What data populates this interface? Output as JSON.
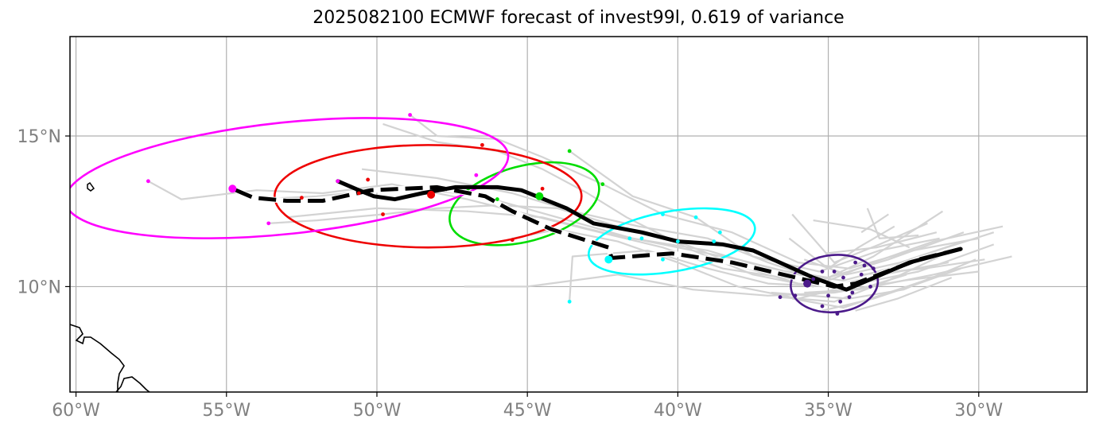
{
  "title": "2025082100 ECMWF forecast of invest99l, 0.619 of variance",
  "axes": {
    "lon_range": [
      -60.2,
      -26.4
    ],
    "lat_range": [
      6.5,
      18.3
    ],
    "x_ticks": [
      {
        "value": -60,
        "label": "60°W"
      },
      {
        "value": -55,
        "label": "55°W"
      },
      {
        "value": -50,
        "label": "50°W"
      },
      {
        "value": -45,
        "label": "45°W"
      },
      {
        "value": -40,
        "label": "40°W"
      },
      {
        "value": -35,
        "label": "35°W"
      },
      {
        "value": -30,
        "label": "30°W"
      }
    ],
    "y_ticks": [
      {
        "value": 10,
        "label": "10°N"
      },
      {
        "value": 15,
        "label": "15°N"
      }
    ],
    "grid_lons": [
      -60,
      -55,
      -50,
      -45,
      -40,
      -35,
      -30
    ],
    "grid_lats": [
      10,
      15
    ]
  },
  "colors": {
    "grid": "#b0b0b0",
    "members": "#d3d3d3",
    "mean": "#000000",
    "coast": "#000000",
    "tick": "#808080"
  },
  "chart_data": {
    "type": "map-track",
    "mean_track": [
      [
        -34.6,
        10.2
      ],
      [
        -34.2,
        10.3
      ],
      [
        -33.5,
        10.6
      ],
      [
        -32.3,
        10.9
      ],
      [
        -31.0,
        11.15
      ],
      [
        -30.6,
        11.3
      ]
    ],
    "solid_track": [
      [
        -30.6,
        11.25
      ],
      [
        -32.3,
        10.8
      ],
      [
        -34.4,
        9.9
      ],
      [
        -35.5,
        10.3
      ],
      [
        -37.5,
        11.2
      ],
      [
        -38.5,
        11.4
      ],
      [
        -40,
        11.5
      ],
      [
        -41.2,
        11.8
      ],
      [
        -42.8,
        12.1
      ],
      [
        -43.7,
        12.6
      ],
      [
        -45.2,
        13.2
      ],
      [
        -46,
        13.3
      ],
      [
        -47.4,
        13.3
      ],
      [
        -48.5,
        13.1
      ],
      [
        -49.4,
        12.9
      ],
      [
        -50.1,
        13.0
      ],
      [
        -50.6,
        13.2
      ],
      [
        -51.3,
        13.5
      ]
    ],
    "dashed_track": [
      [
        -30.6,
        11.25
      ],
      [
        -32.0,
        10.9
      ],
      [
        -34.1,
        10.1
      ],
      [
        -34.8,
        10.0
      ],
      [
        -36.5,
        10.4
      ],
      [
        -38.2,
        10.8
      ],
      [
        -40.2,
        11.1
      ],
      [
        -42.2,
        10.95
      ],
      [
        -42.3,
        11.3
      ],
      [
        -44.2,
        11.9
      ],
      [
        -45.5,
        12.5
      ],
      [
        -46.4,
        13.0
      ],
      [
        -48.0,
        13.3
      ],
      [
        -50.2,
        13.2
      ],
      [
        -51.8,
        12.85
      ],
      [
        -53.0,
        12.85
      ],
      [
        -54.1,
        12.95
      ],
      [
        -54.8,
        13.25
      ]
    ],
    "clusters": [
      {
        "name": "purple",
        "color": "#4b1a8a",
        "center": [
          -34.8,
          10.1
        ],
        "radii": [
          1.45,
          0.95
        ],
        "rotation": -5,
        "points": [
          [
            -35.7,
            10.1
          ],
          [
            -34.5,
            10.3
          ],
          [
            -33.9,
            10.4
          ],
          [
            -33.5,
            10.6
          ],
          [
            -35.0,
            9.7
          ],
          [
            -34.6,
            9.5
          ],
          [
            -35.2,
            9.35
          ],
          [
            -34.2,
            9.8
          ],
          [
            -33.6,
            10.0
          ],
          [
            -36.1,
            9.7
          ],
          [
            -35.2,
            10.5
          ],
          [
            -34.8,
            10.5
          ],
          [
            -34.1,
            10.8
          ],
          [
            -33.8,
            10.7
          ],
          [
            -35.5,
            10.25
          ],
          [
            -34.3,
            9.65
          ],
          [
            -36.6,
            9.65
          ],
          [
            -34.7,
            9.1
          ]
        ]
      },
      {
        "name": "cyan",
        "color": "#00ffff",
        "center": [
          -40.2,
          11.5
        ],
        "radii": [
          2.8,
          1.0
        ],
        "rotation": -10,
        "points": [
          [
            -42.3,
            10.9
          ],
          [
            -40.0,
            11.5
          ],
          [
            -39.4,
            12.3
          ],
          [
            -40.5,
            12.4
          ],
          [
            -41.2,
            11.6
          ],
          [
            -38.6,
            11.8
          ],
          [
            -40.5,
            10.9
          ],
          [
            -41.6,
            11.6
          ],
          [
            -43.6,
            9.5
          ],
          [
            -38.8,
            11.5
          ]
        ]
      },
      {
        "name": "green",
        "color": "#00dd00",
        "center": [
          -45.1,
          12.75
        ],
        "radii": [
          2.55,
          1.25
        ],
        "rotation": -15,
        "points": [
          [
            -44.6,
            13.0
          ],
          [
            -46.0,
            12.9
          ],
          [
            -43.6,
            14.5
          ],
          [
            -42.5,
            13.4
          ]
        ]
      },
      {
        "name": "red",
        "color": "#ee0000",
        "center": [
          -48.3,
          13.0
        ],
        "radii": [
          5.1,
          1.7
        ],
        "rotation": 0,
        "points": [
          [
            -48.2,
            13.05
          ],
          [
            -50.6,
            13.1
          ],
          [
            -50.3,
            13.55
          ],
          [
            -49.8,
            12.4
          ],
          [
            -46.5,
            14.7
          ],
          [
            -45.5,
            11.55
          ],
          [
            -52.5,
            12.95
          ],
          [
            -44.5,
            13.25
          ]
        ]
      },
      {
        "name": "magenta",
        "color": "#ff00ff",
        "center": [
          -53.0,
          13.6
        ],
        "radii": [
          7.4,
          1.85
        ],
        "rotation": -6,
        "points": [
          [
            -54.8,
            13.25
          ],
          [
            -51.3,
            13.5
          ],
          [
            -48.9,
            15.7
          ],
          [
            -57.6,
            13.5
          ],
          [
            -53.6,
            12.1
          ],
          [
            -46.7,
            13.7
          ]
        ]
      }
    ],
    "members": [
      [
        [
          -30.6,
          11.3
        ],
        [
          -33,
          10.6
        ],
        [
          -34.5,
          10.2
        ],
        [
          -36,
          10.4
        ],
        [
          -38,
          10.9
        ],
        [
          -40,
          11.3
        ],
        [
          -42.5,
          11.8
        ],
        [
          -44.5,
          12.3
        ],
        [
          -47,
          12.5
        ],
        [
          -50,
          12.6
        ],
        [
          -53,
          12.3
        ]
      ],
      [
        [
          -30.5,
          11.8
        ],
        [
          -33,
          10.9
        ],
        [
          -35,
          10.3
        ],
        [
          -37,
          10.6
        ],
        [
          -39,
          11.2
        ],
        [
          -41.5,
          11.6
        ],
        [
          -44,
          12.3
        ],
        [
          -46.5,
          13.0
        ],
        [
          -49,
          13.3
        ],
        [
          -52,
          13.0
        ],
        [
          -54,
          12.9
        ]
      ],
      [
        [
          -31.2,
          12.5
        ],
        [
          -33.5,
          11.0
        ],
        [
          -35.2,
          10.2
        ],
        [
          -37,
          10.8
        ],
        [
          -39,
          11.6
        ],
        [
          -41.3,
          12.0
        ],
        [
          -43.5,
          12.5
        ],
        [
          -45.5,
          13.1
        ],
        [
          -48,
          13.6
        ],
        [
          -50.5,
          13.9
        ]
      ],
      [
        [
          -29.5,
          11.8
        ],
        [
          -32,
          11.0
        ],
        [
          -34.5,
          10.0
        ],
        [
          -36.5,
          10.3
        ],
        [
          -38.5,
          10.6
        ],
        [
          -40.5,
          11.3
        ],
        [
          -43,
          11.9
        ],
        [
          -45,
          12.4
        ],
        [
          -47,
          12.9
        ],
        [
          -49.5,
          13.4
        ],
        [
          -51.8,
          13.1
        ],
        [
          -54,
          13.2
        ],
        [
          -56.5,
          12.9
        ],
        [
          -57.6,
          13.5
        ]
      ],
      [
        [
          -29.2,
          12.0
        ],
        [
          -31.5,
          11.5
        ],
        [
          -33.5,
          10.8
        ],
        [
          -35.5,
          10.0
        ],
        [
          -37.5,
          10.4
        ],
        [
          -39.5,
          11.2
        ],
        [
          -41.7,
          12.3
        ],
        [
          -43,
          13.1
        ],
        [
          -44.5,
          13.9
        ],
        [
          -46,
          14.5
        ],
        [
          -48,
          14.8
        ],
        [
          -49.8,
          15.4
        ]
      ],
      [
        [
          -28.9,
          11.0
        ],
        [
          -31.5,
          10.4
        ],
        [
          -34,
          9.9
        ],
        [
          -36,
          10.1
        ],
        [
          -38,
          10.7
        ],
        [
          -40,
          11.5
        ],
        [
          -42,
          12.0
        ],
        [
          -44,
          12.6
        ],
        [
          -46,
          12.7
        ],
        [
          -48,
          12.6
        ],
        [
          -49.8,
          12.4
        ],
        [
          -52,
          12.2
        ],
        [
          -53.6,
          12.1
        ]
      ],
      [
        [
          -30,
          10.5
        ],
        [
          -32.5,
          10.2
        ],
        [
          -34.8,
          9.8
        ],
        [
          -37,
          9.7
        ],
        [
          -39.5,
          9.9
        ],
        [
          -42,
          10.4
        ],
        [
          -45,
          10.0
        ],
        [
          -47.1,
          10.0
        ]
      ],
      [
        [
          -31,
          10.8
        ],
        [
          -33.2,
          10.4
        ],
        [
          -35,
          10.0
        ],
        [
          -37,
          10.1
        ],
        [
          -39,
          10.6
        ],
        [
          -41,
          11.2
        ],
        [
          -43.5,
          11.0
        ],
        [
          -43.6,
          9.5
        ]
      ],
      [
        [
          -29.5,
          11.4
        ],
        [
          -32,
          10.5
        ],
        [
          -34,
          10.1
        ],
        [
          -36,
          9.6
        ],
        [
          -38,
          10.0
        ],
        [
          -40,
          10.8
        ],
        [
          -42,
          11.5
        ],
        [
          -44,
          11.9
        ],
        [
          -45.5,
          11.6
        ]
      ],
      [
        [
          -30,
          11.6
        ],
        [
          -32.2,
          11.2
        ],
        [
          -34.3,
          10.6
        ],
        [
          -36,
          10.8
        ],
        [
          -38.2,
          11.8
        ],
        [
          -40.5,
          12.4
        ],
        [
          -42.5,
          13.4
        ],
        [
          -44.5,
          14.3
        ],
        [
          -46,
          14.9
        ],
        [
          -48,
          15.0
        ],
        [
          -48.9,
          15.7
        ]
      ],
      [
        [
          -31.3,
          11.6
        ],
        [
          -33.3,
          11.2
        ],
        [
          -35.3,
          10.5
        ],
        [
          -37.5,
          11.0
        ],
        [
          -39.4,
          12.3
        ],
        [
          -41.5,
          13.0
        ],
        [
          -43.6,
          14.5
        ]
      ],
      [
        [
          -31.3,
          11.0
        ],
        [
          -33.0,
          10.2
        ],
        [
          -34.8,
          9.5
        ],
        [
          -36.6,
          9.65
        ]
      ],
      [
        [
          -31.5,
          10.3
        ],
        [
          -33,
          9.8
        ],
        [
          -34.5,
          9.3
        ],
        [
          -36.2,
          9.6
        ]
      ],
      [
        [
          -32.3,
          11.3
        ],
        [
          -33.6,
          11.9
        ],
        [
          -35.5,
          12.2
        ]
      ],
      [
        [
          -32.8,
          12.0
        ],
        [
          -34.0,
          11.3
        ],
        [
          -35.0,
          10.6
        ],
        [
          -36.3,
          11.6
        ]
      ],
      [
        [
          -31.7,
          12.1
        ],
        [
          -33.3,
          11.4
        ],
        [
          -34.8,
          10.8
        ],
        [
          -36.2,
          12.4
        ]
      ],
      [
        [
          -30.6,
          10.6
        ],
        [
          -32,
          10.1
        ],
        [
          -33.5,
          9.6
        ],
        [
          -35.2,
          9.2
        ]
      ],
      [
        [
          -32.0,
          11.7
        ],
        [
          -33.3,
          11.6
        ],
        [
          -33.7,
          12.6
        ]
      ],
      [
        [
          -29.8,
          10.9
        ],
        [
          -31.8,
          10.6
        ],
        [
          -33.9,
          10.4
        ]
      ],
      [
        [
          -30.1,
          10.9
        ],
        [
          -32.5,
          9.9
        ],
        [
          -34.3,
          9.6
        ],
        [
          -36.9,
          9.8
        ]
      ],
      [
        [
          -30.5,
          11.5
        ],
        [
          -32.6,
          10.8
        ],
        [
          -34.4,
          10.4
        ],
        [
          -35.8,
          10.9
        ]
      ],
      [
        [
          -30.9,
          10.3
        ],
        [
          -32.7,
          9.6
        ],
        [
          -34.1,
          9.2
        ]
      ],
      [
        [
          -33.0,
          12.4
        ],
        [
          -33.9,
          11.8
        ]
      ],
      [
        [
          -31.4,
          11.8
        ],
        [
          -33.4,
          11.3
        ],
        [
          -35.1,
          11.1
        ]
      ],
      [
        [
          -32.4,
          10.4
        ],
        [
          -34.0,
          9.9
        ],
        [
          -35.8,
          9.8
        ]
      ]
    ]
  }
}
